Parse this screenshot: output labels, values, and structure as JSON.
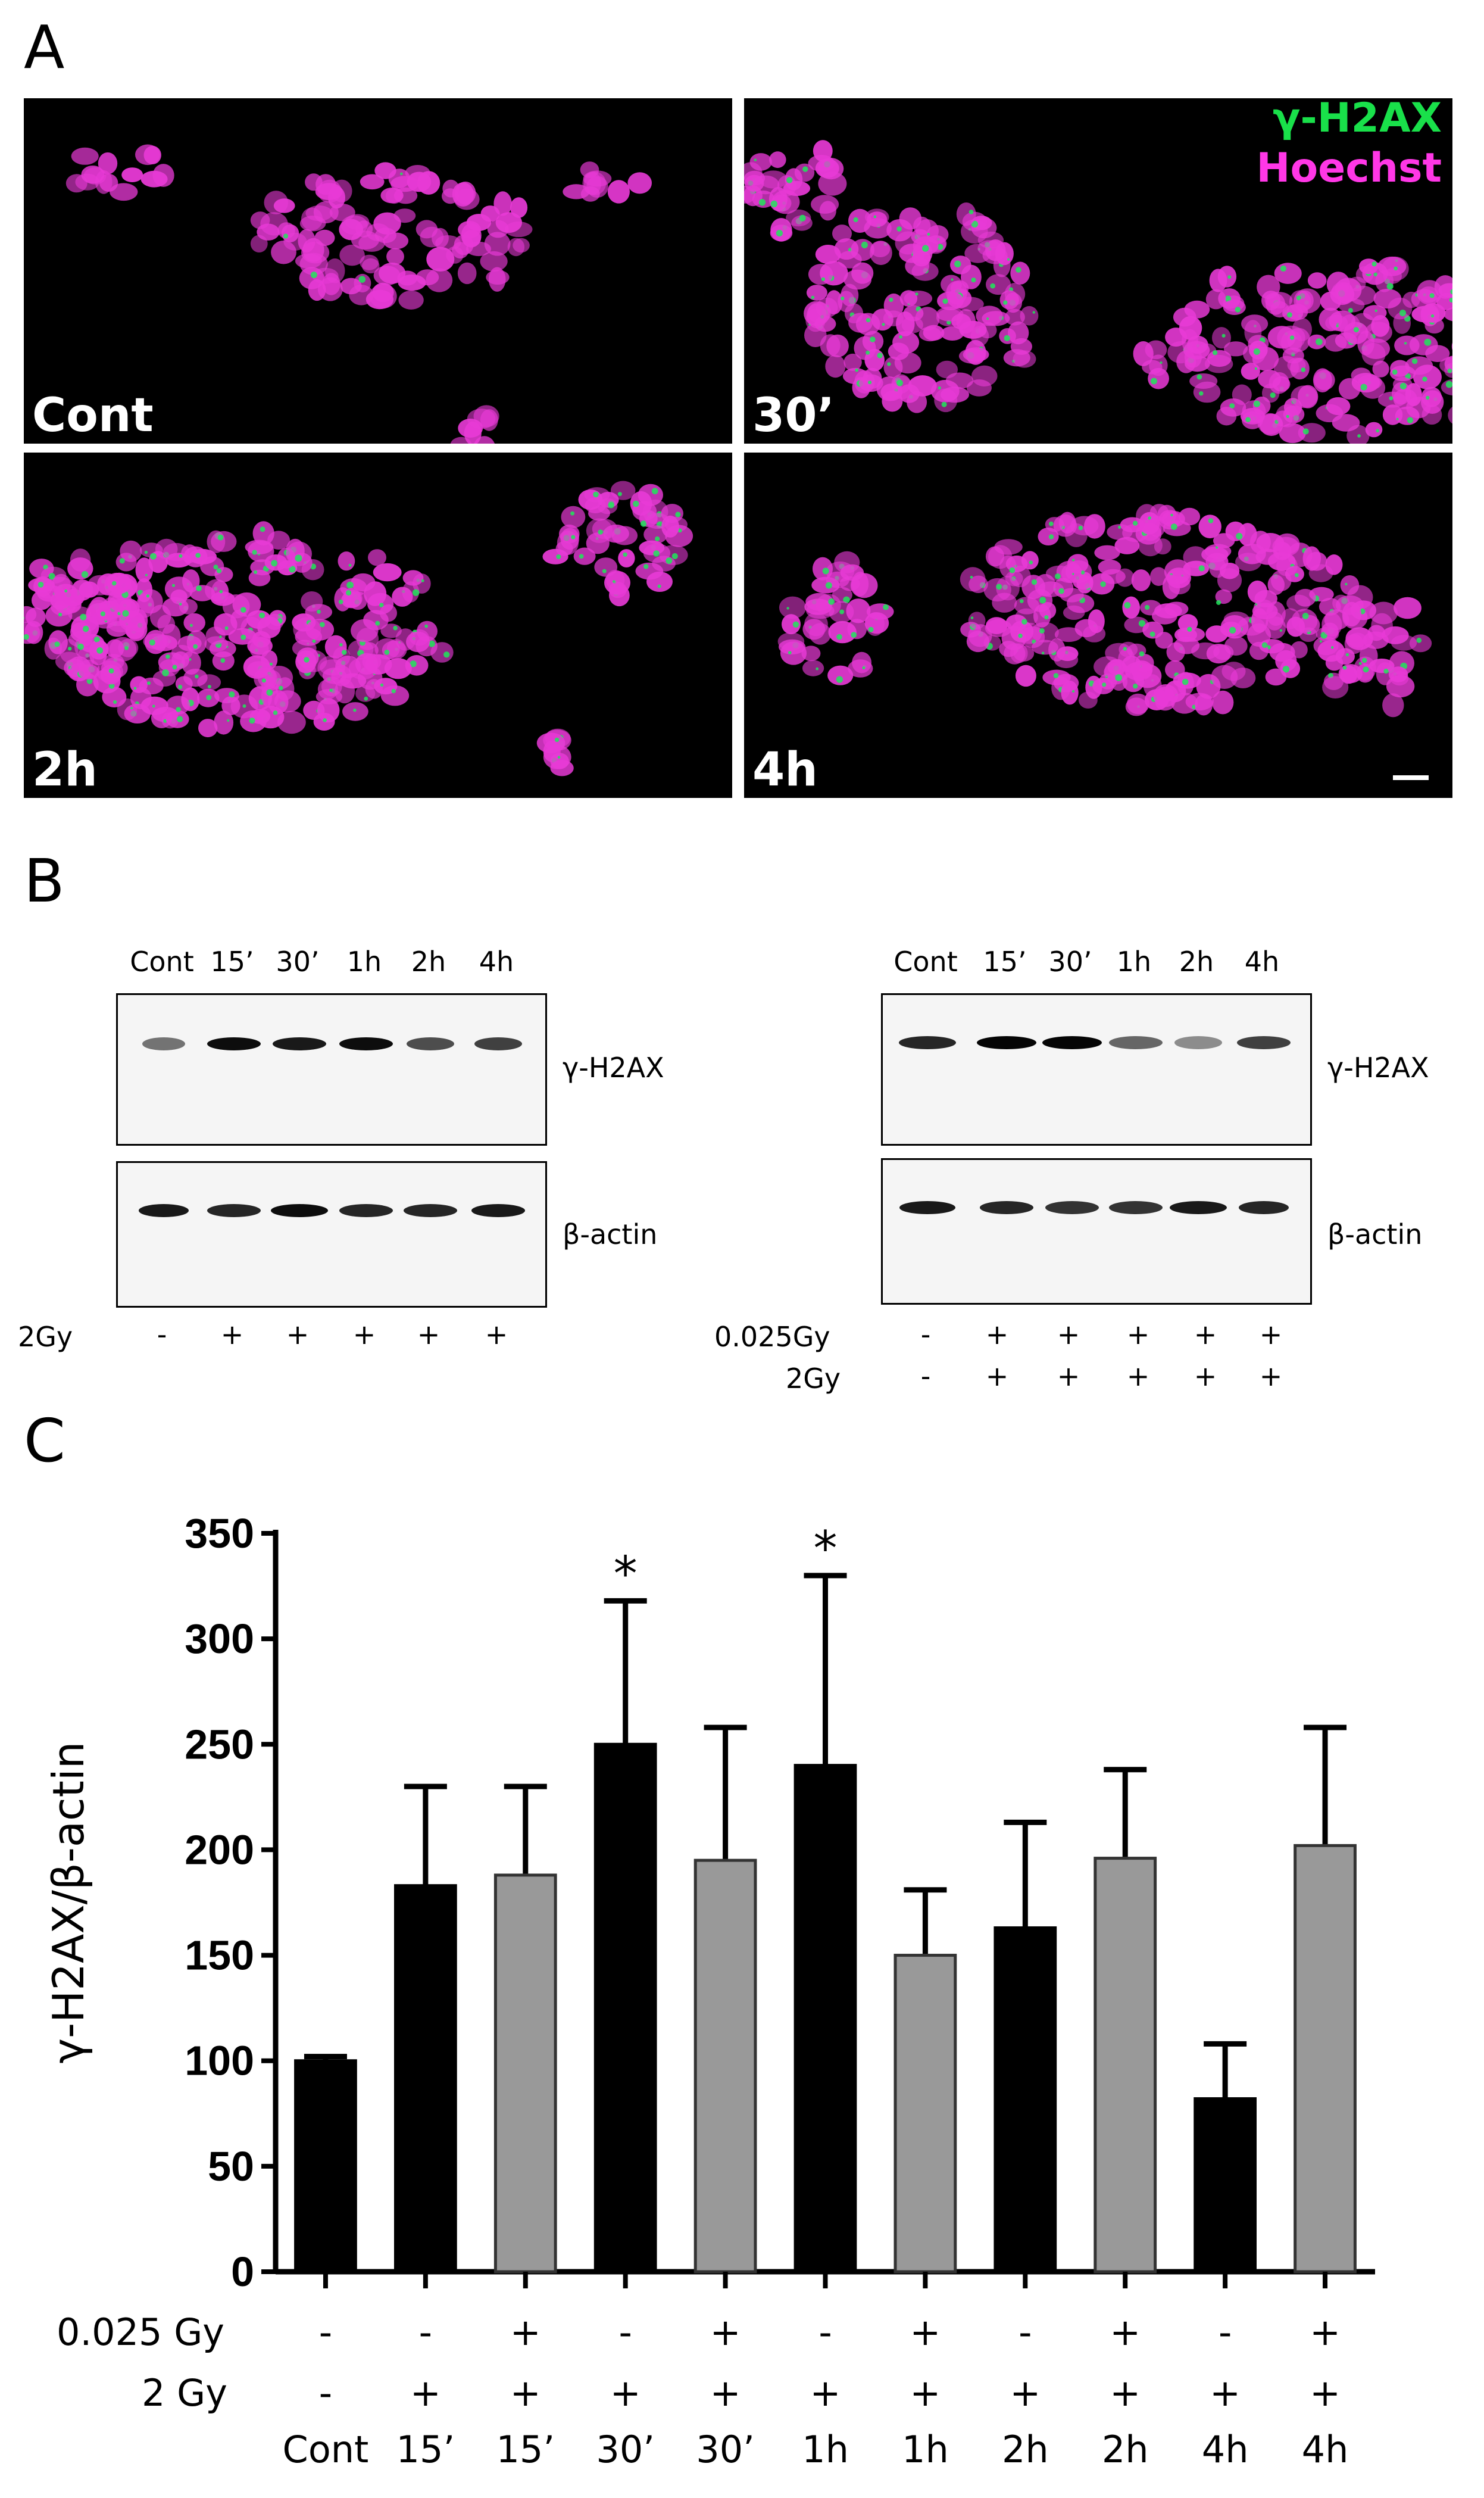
{
  "panels": {
    "a_letter": "A",
    "b_letter": "B",
    "c_letter": "C"
  },
  "microscopy": {
    "legend_green": "γ-H2AX",
    "legend_magenta": "Hoechst",
    "labels": [
      "Cont",
      "30’",
      "2h",
      "4h"
    ],
    "colors": {
      "nuclei": "#e83ad6",
      "foci": "#1ee65a",
      "background": "#000000"
    }
  },
  "western": {
    "left": {
      "lanes": [
        "Cont",
        "15’",
        "30’",
        "1h",
        "2h",
        "4h"
      ],
      "band1": "γ-H2AX",
      "band2": "β-actin",
      "row1_label": "2Gy",
      "row1_signs": [
        "-",
        "+",
        "+",
        "+",
        "+",
        "+"
      ]
    },
    "right": {
      "lanes": [
        "Cont",
        "15’",
        "30’",
        "1h",
        "2h",
        "4h"
      ],
      "band1": "γ-H2AX",
      "band2": "β-actin",
      "row1_label": "0.025Gy",
      "row1_signs": [
        "-",
        "+",
        "+",
        "+",
        "+",
        "+"
      ],
      "row2_label": "2Gy",
      "row2_signs": [
        "-",
        "+",
        "+",
        "+",
        "+",
        "+"
      ]
    }
  },
  "chart_data": {
    "type": "bar",
    "title": "",
    "ylabel": "γ-H2AX/β-actin",
    "ylim": [
      0,
      350
    ],
    "yticks": [
      0,
      50,
      100,
      150,
      200,
      250,
      300,
      350
    ],
    "categories": [
      "Cont",
      "15’",
      "15’",
      "30’",
      "30’",
      "1h",
      "1h",
      "2h",
      "2h",
      "4h",
      "4h"
    ],
    "values": [
      100,
      183,
      188,
      250,
      195,
      240,
      150,
      163,
      196,
      82,
      202
    ],
    "errors": [
      2,
      47,
      42,
      68,
      63,
      90,
      31,
      50,
      42,
      26,
      56
    ],
    "bar_colors": [
      "#000000",
      "#000000",
      "#999999",
      "#000000",
      "#999999",
      "#000000",
      "#999999",
      "#000000",
      "#999999",
      "#000000",
      "#999999"
    ],
    "significance": [
      "",
      "",
      "",
      "*",
      "",
      "*",
      "",
      "",
      "",
      "",
      ""
    ],
    "row_labels": {
      "low_dose": "0.025 Gy",
      "high_dose": "2 Gy"
    },
    "low_dose_signs": [
      "-",
      "-",
      "+",
      "-",
      "+",
      "-",
      "+",
      "-",
      "+",
      "-",
      "+"
    ],
    "high_dose_signs": [
      "-",
      "+",
      "+",
      "+",
      "+",
      "+",
      "+",
      "+",
      "+",
      "+",
      "+"
    ]
  }
}
